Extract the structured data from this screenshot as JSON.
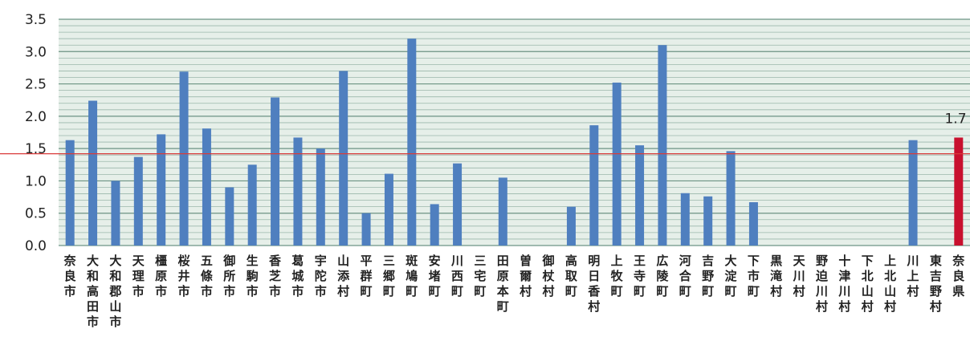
{
  "chart_data": {
    "type": "bar",
    "title": "",
    "xlabel": "",
    "ylabel": "",
    "ylim": [
      0,
      3.5
    ],
    "yticks": [
      "0.0",
      "0.5",
      "1.0",
      "1.5",
      "2.0",
      "2.5",
      "3.0",
      "3.5"
    ],
    "grid": "horizontal",
    "categories": [
      "奈良市",
      "大和高田市",
      "大和郡山市",
      "天理市",
      "橿原市",
      "桜井市",
      "五條市",
      "御所市",
      "生駒市",
      "香芝市",
      "葛城市",
      "宇陀市",
      "山添村",
      "平群町",
      "三郷町",
      "斑鳩町",
      "安堵町",
      "川西町",
      "三宅町",
      "田原本町",
      "曽爾村",
      "御杖村",
      "高取町",
      "明日香村",
      "上牧町",
      "王寺町",
      "広陵町",
      "河合町",
      "吉野町",
      "大淀町",
      "下市町",
      "黒滝村",
      "天川村",
      "野迫川村",
      "十津川村",
      "下北山村",
      "上北山村",
      "川上村",
      "東吉野村",
      "奈良県"
    ],
    "values": [
      1.63,
      2.24,
      1.0,
      1.37,
      1.72,
      2.69,
      1.81,
      0.9,
      1.25,
      2.29,
      1.67,
      1.5,
      2.7,
      0.5,
      1.11,
      3.2,
      0.64,
      1.27,
      0,
      1.05,
      0,
      0,
      0.6,
      1.86,
      2.52,
      1.55,
      3.1,
      0.81,
      0.76,
      1.46,
      0.67,
      0,
      0,
      0,
      0,
      0,
      0,
      1.63,
      0,
      1.67
    ],
    "reference_line": 1.42,
    "highlight_category": "奈良県",
    "highlight_label": "1.7",
    "colors": {
      "bar": "#4f7fbf",
      "highlight": "#c8102e",
      "reference_line": "#d93a3a",
      "grid": "#5f8a7a",
      "background": "#e6efe9"
    }
  }
}
